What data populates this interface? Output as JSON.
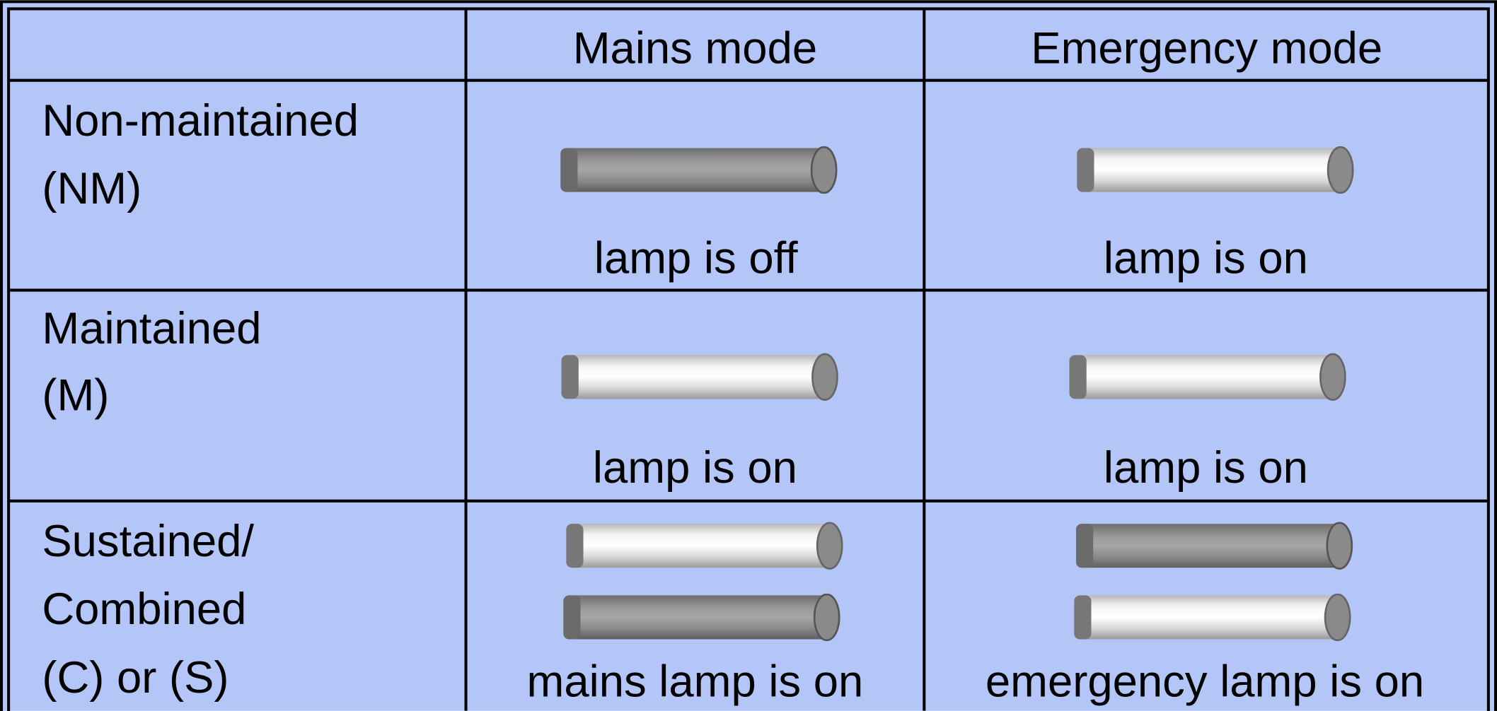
{
  "table": {
    "columns": [
      "Mains mode",
      "Emergency mode"
    ],
    "rows": [
      {
        "label": [
          "Non-maintained",
          "(NM)"
        ],
        "cells": [
          "lamp is off",
          "lamp is on"
        ]
      },
      {
        "label": [
          "Maintained",
          "(M)"
        ],
        "cells": [
          "lamp is on",
          "lamp is on"
        ]
      },
      {
        "label": [
          "Sustained/",
          "Combined",
          "(C) or (S)"
        ],
        "cells": [
          "mains lamp is on",
          "emergency lamp is on"
        ]
      }
    ]
  }
}
